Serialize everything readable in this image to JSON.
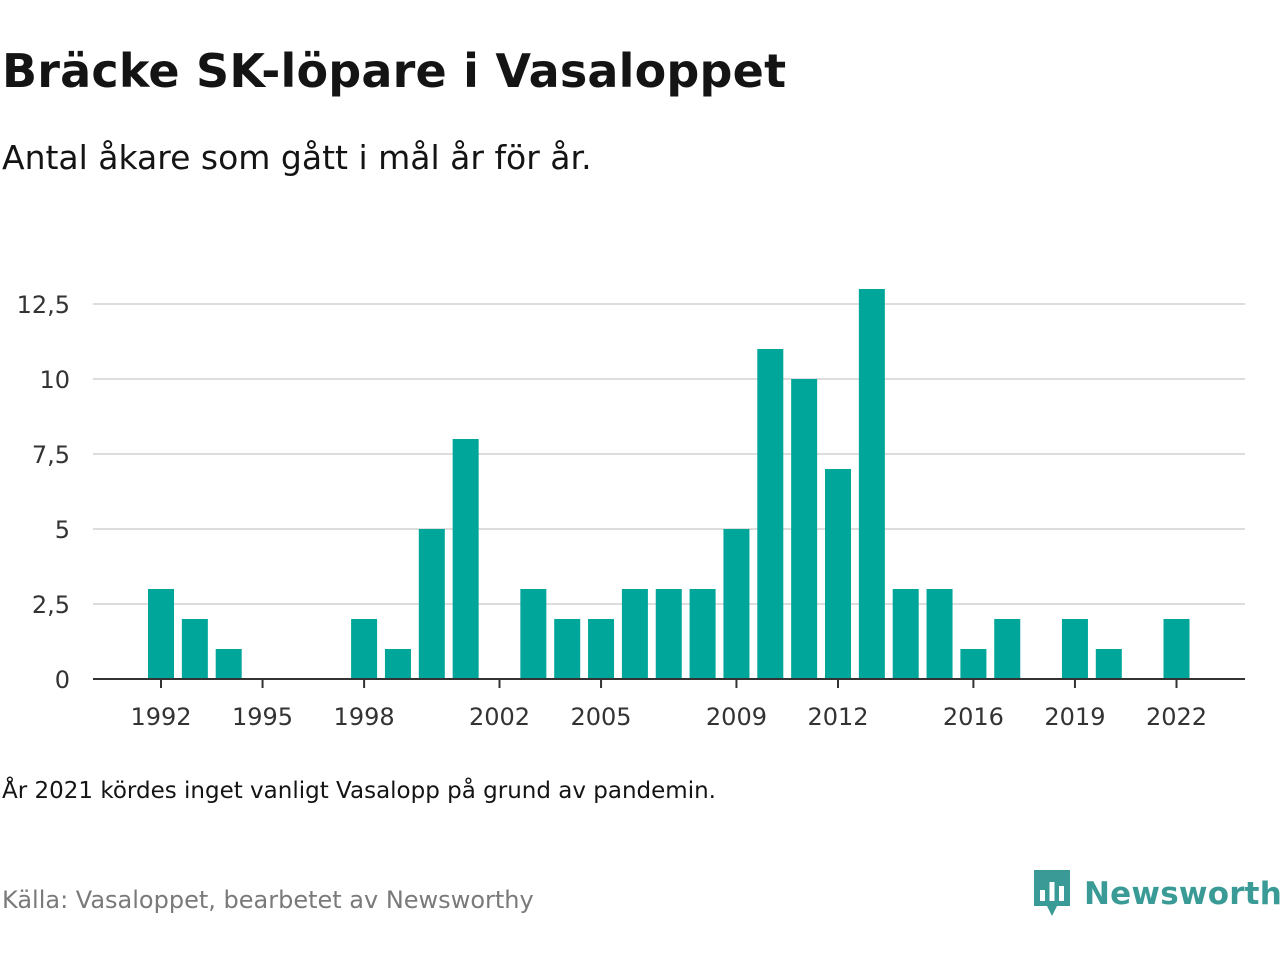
{
  "header": {
    "title": "Bräcke SK-löpare i Vasaloppet",
    "subtitle": "Antal åkare som gått i mål år för år."
  },
  "footer": {
    "note": "År 2021 kördes inget vanligt Vasalopp på grund av pandemin.",
    "source": "Källa: Vasaloppet, bearbetet av Newsworthy"
  },
  "brand": {
    "name": "Newsworthy",
    "icon": "newsworthy-logo-icon",
    "color": "#3a9b96"
  },
  "colors": {
    "bar": "#00a69a",
    "grid": "#dddddd",
    "axis": "#333333"
  },
  "chart_data": {
    "type": "bar",
    "x": [
      1992,
      1993,
      1994,
      1995,
      1996,
      1997,
      1998,
      1999,
      2000,
      2001,
      2002,
      2003,
      2004,
      2005,
      2006,
      2007,
      2008,
      2009,
      2010,
      2011,
      2012,
      2013,
      2014,
      2015,
      2016,
      2017,
      2018,
      2019,
      2020,
      2021,
      2022
    ],
    "values": [
      3,
      2,
      1,
      0,
      0,
      0,
      2,
      1,
      5,
      8,
      0,
      3,
      2,
      2,
      3,
      3,
      3,
      5,
      11,
      10,
      7,
      13,
      3,
      3,
      1,
      2,
      0,
      2,
      1,
      0,
      2
    ],
    "x_tick_labels": [
      "1992",
      "1995",
      "1998",
      "2002",
      "2005",
      "2009",
      "2012",
      "2016",
      "2019",
      "2022"
    ],
    "x_tick_years": [
      1992,
      1995,
      1998,
      2002,
      2005,
      2009,
      2012,
      2016,
      2019,
      2022
    ],
    "y_ticks": [
      0,
      2.5,
      5,
      7.5,
      10,
      12.5
    ],
    "y_tick_labels": [
      "0",
      "2,5",
      "5",
      "7,5",
      "10",
      "12,5"
    ],
    "ylim": [
      0,
      13
    ],
    "grid": true,
    "legend": "none"
  }
}
